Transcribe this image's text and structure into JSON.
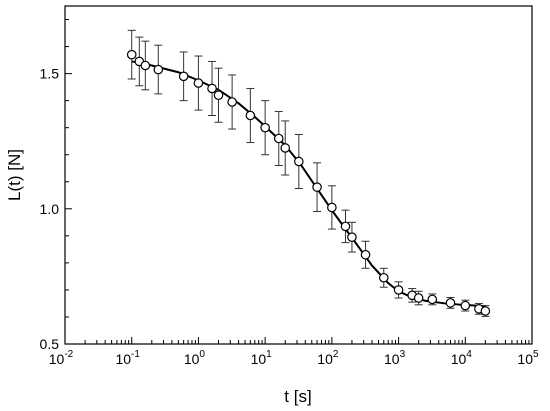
{
  "chart_data": {
    "type": "scatter",
    "title": "",
    "xlabel": "t [s]",
    "ylabel": "L(t) [N]",
    "xscale": "log",
    "xlim": [
      0.01,
      100000
    ],
    "ylim": [
      0.5,
      1.75
    ],
    "grid": false,
    "legend": "none",
    "x_ticks": [
      {
        "value": 0.01,
        "base": "10",
        "exp": "-2"
      },
      {
        "value": 0.1,
        "base": "10",
        "exp": "-1"
      },
      {
        "value": 1,
        "base": "10",
        "exp": "0"
      },
      {
        "value": 10,
        "base": "10",
        "exp": "1"
      },
      {
        "value": 100,
        "base": "10",
        "exp": "2"
      },
      {
        "value": 1000,
        "base": "10",
        "exp": "3"
      },
      {
        "value": 10000,
        "base": "10",
        "exp": "4"
      },
      {
        "value": 100000,
        "base": "10",
        "exp": "5"
      }
    ],
    "y_ticks": [
      {
        "value": 0.5,
        "label": "0.5"
      },
      {
        "value": 1.0,
        "label": "1.0"
      },
      {
        "value": 1.5,
        "label": "1.5"
      }
    ],
    "series": [
      {
        "kind": "points_with_error_bars",
        "marker": "open-circle",
        "color": "#000000",
        "points": [
          {
            "x": 0.1,
            "y": 1.57,
            "err": 0.09
          },
          {
            "x": 0.13,
            "y": 1.545,
            "err": 0.09
          },
          {
            "x": 0.16,
            "y": 1.53,
            "err": 0.09
          },
          {
            "x": 0.25,
            "y": 1.515,
            "err": 0.09
          },
          {
            "x": 0.6,
            "y": 1.49,
            "err": 0.09
          },
          {
            "x": 1.0,
            "y": 1.465,
            "err": 0.1
          },
          {
            "x": 1.6,
            "y": 1.445,
            "err": 0.1
          },
          {
            "x": 2.0,
            "y": 1.42,
            "err": 0.1
          },
          {
            "x": 3.2,
            "y": 1.395,
            "err": 0.1
          },
          {
            "x": 6.0,
            "y": 1.345,
            "err": 0.1
          },
          {
            "x": 10,
            "y": 1.3,
            "err": 0.1
          },
          {
            "x": 16,
            "y": 1.26,
            "err": 0.1
          },
          {
            "x": 20,
            "y": 1.225,
            "err": 0.1
          },
          {
            "x": 32,
            "y": 1.175,
            "err": 0.1
          },
          {
            "x": 60,
            "y": 1.08,
            "err": 0.09
          },
          {
            "x": 100,
            "y": 1.005,
            "err": 0.08
          },
          {
            "x": 160,
            "y": 0.935,
            "err": 0.06
          },
          {
            "x": 200,
            "y": 0.895,
            "err": 0.055
          },
          {
            "x": 320,
            "y": 0.83,
            "err": 0.05
          },
          {
            "x": 600,
            "y": 0.745,
            "err": 0.035
          },
          {
            "x": 1000,
            "y": 0.7,
            "err": 0.03
          },
          {
            "x": 1600,
            "y": 0.68,
            "err": 0.025
          },
          {
            "x": 2000,
            "y": 0.67,
            "err": 0.025
          },
          {
            "x": 3200,
            "y": 0.665,
            "err": 0.02
          },
          {
            "x": 6000,
            "y": 0.652,
            "err": 0.02
          },
          {
            "x": 10000,
            "y": 0.642,
            "err": 0.02
          },
          {
            "x": 16000,
            "y": 0.63,
            "err": 0.02
          },
          {
            "x": 20000,
            "y": 0.622,
            "err": 0.02
          }
        ]
      },
      {
        "kind": "fit_line",
        "color": "#000000",
        "points": [
          {
            "x": 0.1,
            "y": 1.545
          },
          {
            "x": 0.2,
            "y": 1.53
          },
          {
            "x": 0.5,
            "y": 1.505
          },
          {
            "x": 1,
            "y": 1.475
          },
          {
            "x": 2,
            "y": 1.44
          },
          {
            "x": 4,
            "y": 1.39
          },
          {
            "x": 7,
            "y": 1.34
          },
          {
            "x": 10,
            "y": 1.305
          },
          {
            "x": 20,
            "y": 1.235
          },
          {
            "x": 35,
            "y": 1.16
          },
          {
            "x": 60,
            "y": 1.075
          },
          {
            "x": 100,
            "y": 0.995
          },
          {
            "x": 150,
            "y": 0.935
          },
          {
            "x": 250,
            "y": 0.86
          },
          {
            "x": 400,
            "y": 0.79
          },
          {
            "x": 700,
            "y": 0.725
          },
          {
            "x": 1000,
            "y": 0.695
          },
          {
            "x": 1500,
            "y": 0.675
          },
          {
            "x": 2500,
            "y": 0.66
          },
          {
            "x": 5000,
            "y": 0.65
          },
          {
            "x": 10000,
            "y": 0.644
          },
          {
            "x": 20000,
            "y": 0.64
          }
        ]
      }
    ]
  }
}
